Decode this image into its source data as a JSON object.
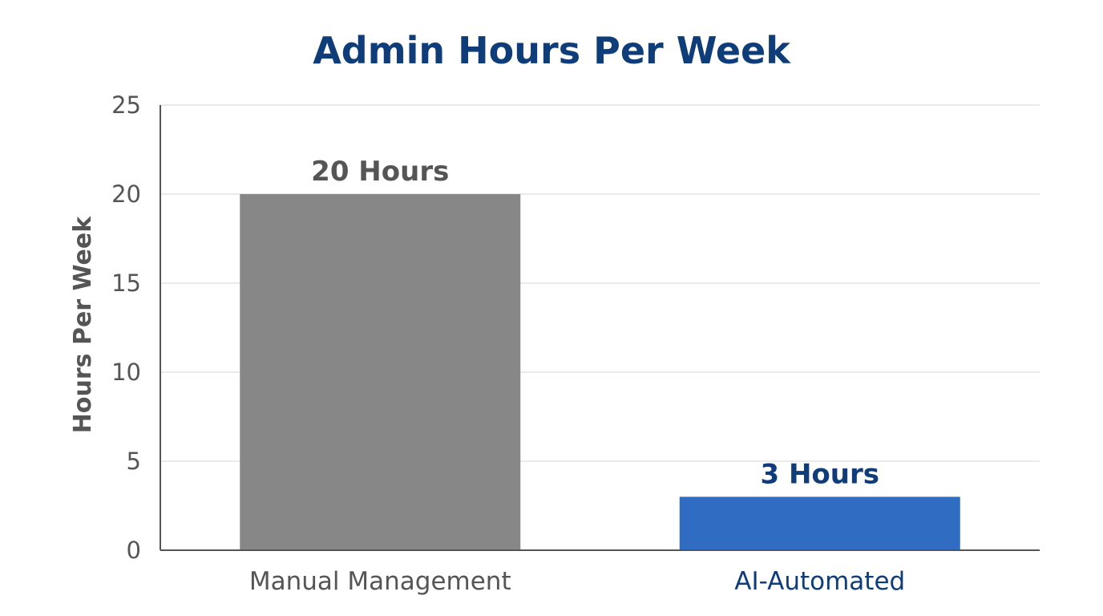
{
  "chart_data": {
    "type": "bar",
    "title": "Admin Hours Per Week",
    "ylabel": "Hours Per Week",
    "xlabel": "",
    "categories": [
      "Manual Management",
      "AI-Automated"
    ],
    "values": [
      20,
      3
    ],
    "data_labels": [
      "20 Hours",
      "3 Hours"
    ],
    "ylim": [
      0,
      25
    ],
    "yticks": [
      0,
      5,
      10,
      15,
      20,
      25
    ],
    "grid": true,
    "legend": "none",
    "colors": {
      "bars": [
        "#878787",
        "#2f6cc2"
      ],
      "data_labels": [
        "#555555",
        "#0f3d7a"
      ],
      "category_labels": [
        "#555555",
        "#0f3d7a"
      ],
      "title": "#0f3d7a",
      "axis": "#555555",
      "grid": "#e4e4e4"
    }
  }
}
